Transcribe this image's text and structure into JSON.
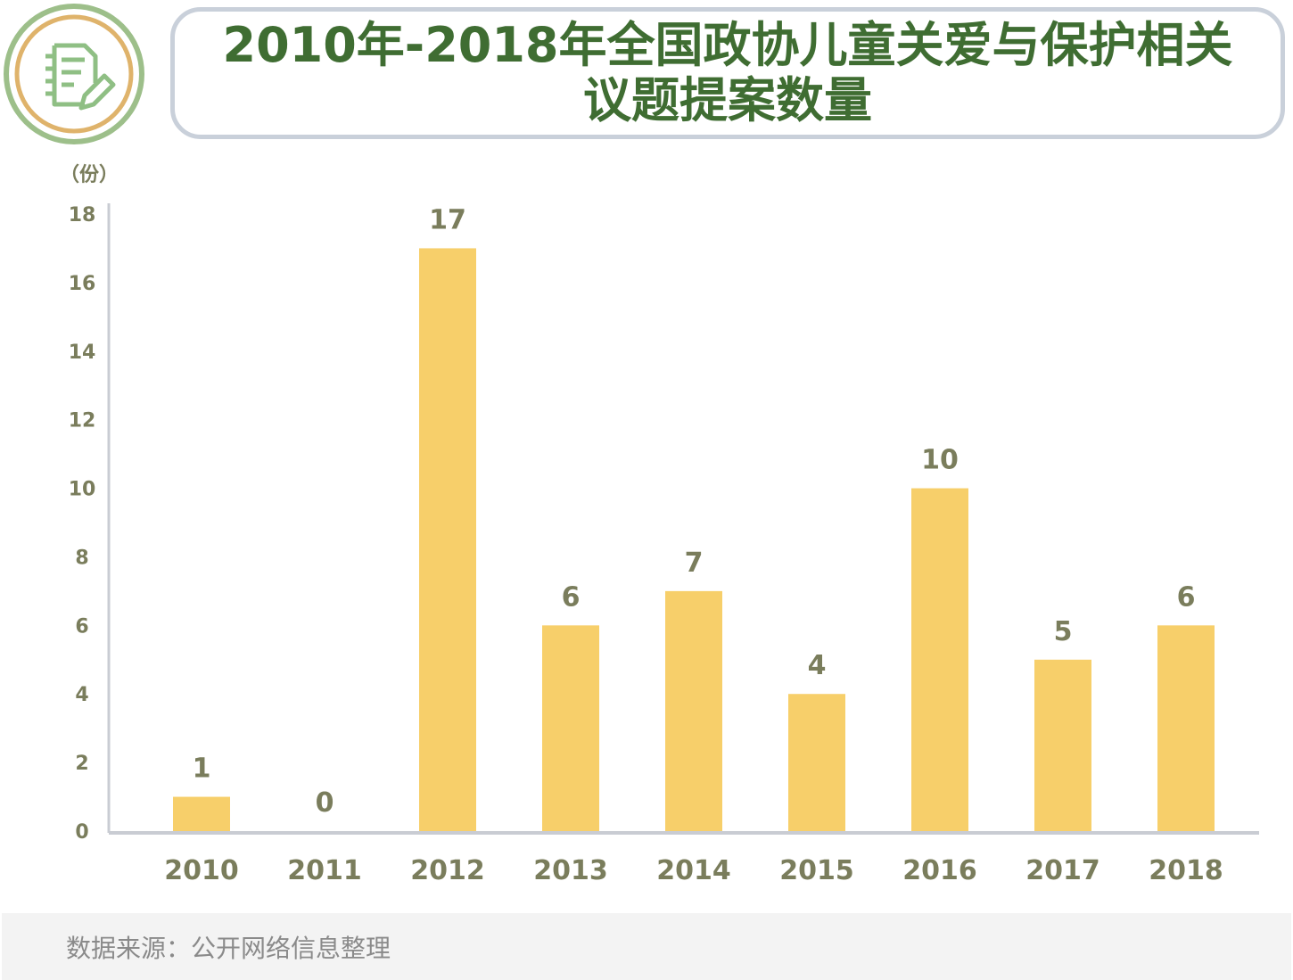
{
  "header": {
    "title_line1": "2010年-2018年全国政协儿童关爱与保护相关",
    "title_line2": "议题提案数量",
    "icon": "document-edit-icon"
  },
  "colors": {
    "bar": "#f7cf6a",
    "title": "#3f6d32",
    "label": "#7a7d5c",
    "axis": "#c9ccd3",
    "icon_outer_ring": "#9dbf8a",
    "icon_inner_ring": "#dfb36b",
    "icon_glyph": "#8fbf84"
  },
  "chart_data": {
    "type": "bar",
    "title": "2010年-2018年全国政协儿童关爱与保护相关议题提案数量",
    "ylabel": "（份）",
    "xlabel": "",
    "categories": [
      "2010",
      "2011",
      "2012",
      "2013",
      "2014",
      "2015",
      "2016",
      "2017",
      "2018"
    ],
    "values": [
      1,
      0,
      17,
      6,
      7,
      4,
      10,
      5,
      6
    ],
    "ylim": [
      0,
      18
    ],
    "yticks": [
      "0",
      "2",
      "4",
      "6",
      "8",
      "10",
      "12",
      "14",
      "16",
      "18"
    ],
    "data_labels": [
      "1",
      "0",
      "17",
      "6",
      "7",
      "4",
      "10",
      "5",
      "6"
    ],
    "grid": false,
    "legend": "none"
  },
  "footer": {
    "source": "数据来源：公开网络信息整理"
  }
}
